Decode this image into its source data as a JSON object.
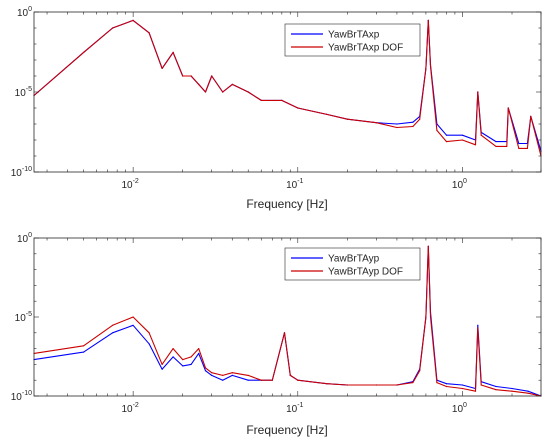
{
  "chart_data": [
    {
      "type": "line",
      "title": "",
      "xlabel": "Frequency [Hz]",
      "ylabel": "",
      "xscale": "log",
      "yscale": "log",
      "xlim": [
        0.0025,
        3
      ],
      "ylim": [
        1e-10,
        1
      ],
      "xticks": [
        {
          "value": 0.01,
          "base": "10",
          "exp": "-2"
        },
        {
          "value": 0.1,
          "base": "10",
          "exp": "-1"
        },
        {
          "value": 1,
          "base": "10",
          "exp": "0"
        }
      ],
      "yticks": [
        {
          "value": 1,
          "base": "10",
          "exp": "0"
        },
        {
          "value": 1e-05,
          "base": "10",
          "exp": "-5"
        },
        {
          "value": 1e-10,
          "base": "10",
          "exp": "-10"
        }
      ],
      "grid": false,
      "legend_position": "top-right",
      "x": [
        0.0025,
        0.005,
        0.0075,
        0.01,
        0.0125,
        0.015,
        0.0175,
        0.02,
        0.0225,
        0.025,
        0.0275,
        0.03,
        0.035,
        0.04,
        0.05,
        0.06,
        0.08,
        0.1,
        0.15,
        0.2,
        0.3,
        0.4,
        0.5,
        0.55,
        0.6,
        0.62,
        0.64,
        0.7,
        0.8,
        1.0,
        1.2,
        1.24,
        1.3,
        1.6,
        1.86,
        1.9,
        2.2,
        2.48,
        2.6,
        3.0
      ],
      "series": [
        {
          "name": "YawBrTAxp",
          "color": "#0000ff",
          "values": [
            6e-06,
            0.003,
            0.1,
            0.3,
            0.05,
            0.0003,
            0.003,
            0.0001,
            0.0001,
            3e-05,
            1e-05,
            0.0001,
            1e-05,
            3e-05,
            1e-05,
            3e-06,
            3e-06,
            1e-06,
            4e-07,
            2e-07,
            1.2e-07,
            1e-07,
            1.3e-07,
            3e-07,
            0.0003,
            0.3,
            0.0005,
            1e-07,
            2e-08,
            2e-08,
            1e-08,
            1e-05,
            3e-08,
            8e-09,
            8e-09,
            1e-06,
            6e-09,
            6e-09,
            3e-07,
            2e-09
          ]
        },
        {
          "name": "YawBrTAxp DOF",
          "color": "#cc0000",
          "values": [
            6e-06,
            0.003,
            0.1,
            0.3,
            0.05,
            0.0003,
            0.003,
            0.0001,
            0.0001,
            3e-05,
            1e-05,
            0.0001,
            1e-05,
            3e-05,
            1e-05,
            3e-06,
            3e-06,
            1e-06,
            4e-07,
            2e-07,
            1.2e-07,
            6e-08,
            7e-08,
            2e-07,
            0.0003,
            0.3,
            0.0004,
            4e-08,
            8e-09,
            1e-08,
            5e-09,
            1e-05,
            2e-08,
            4e-09,
            4e-09,
            1e-06,
            3e-09,
            3e-09,
            3e-07,
            1e-09
          ]
        }
      ]
    },
    {
      "type": "line",
      "title": "",
      "xlabel": "Frequency [Hz]",
      "ylabel": "",
      "xscale": "log",
      "yscale": "log",
      "xlim": [
        0.0025,
        3
      ],
      "ylim": [
        1e-10,
        1
      ],
      "xticks": [
        {
          "value": 0.01,
          "base": "10",
          "exp": "-2"
        },
        {
          "value": 0.1,
          "base": "10",
          "exp": "-1"
        },
        {
          "value": 1,
          "base": "10",
          "exp": "0"
        }
      ],
      "yticks": [
        {
          "value": 1,
          "base": "10",
          "exp": "0"
        },
        {
          "value": 1e-05,
          "base": "10",
          "exp": "-5"
        },
        {
          "value": 1e-10,
          "base": "10",
          "exp": "-10"
        }
      ],
      "grid": false,
      "legend_position": "top-right",
      "x": [
        0.0025,
        0.005,
        0.0075,
        0.01,
        0.0125,
        0.015,
        0.0175,
        0.02,
        0.0225,
        0.025,
        0.0275,
        0.03,
        0.035,
        0.04,
        0.05,
        0.06,
        0.07,
        0.083,
        0.09,
        0.1,
        0.15,
        0.2,
        0.3,
        0.4,
        0.5,
        0.55,
        0.6,
        0.62,
        0.64,
        0.7,
        0.8,
        1.0,
        1.2,
        1.24,
        1.3,
        1.6,
        2.0,
        2.5,
        3.0
      ],
      "series": [
        {
          "name": "YawBrTAyp",
          "color": "#0000ff",
          "values": [
            2e-08,
            6e-08,
            1e-06,
            3e-06,
            2e-07,
            5e-09,
            3e-08,
            8e-09,
            1e-08,
            5e-08,
            4e-09,
            2e-09,
            1e-09,
            2e-09,
            1e-09,
            1e-09,
            1e-09,
            1e-06,
            2e-09,
            1e-09,
            6e-10,
            5e-10,
            5e-10,
            5e-10,
            8e-10,
            5e-09,
            1e-05,
            0.3,
            2e-05,
            1e-09,
            6e-10,
            5e-10,
            3e-10,
            3e-06,
            8e-10,
            4e-10,
            3e-10,
            2e-10,
            1e-10
          ]
        },
        {
          "name": "YawBrTAyp DOF",
          "color": "#cc0000",
          "values": [
            5e-08,
            1.5e-07,
            3e-06,
            1e-05,
            1e-06,
            1e-08,
            1e-07,
            2e-08,
            3e-08,
            1e-07,
            6e-09,
            3e-09,
            2e-09,
            3e-09,
            2e-09,
            1e-09,
            1e-09,
            1e-06,
            2e-09,
            1e-09,
            6e-10,
            5e-10,
            5e-10,
            5e-10,
            7e-10,
            4e-09,
            1e-05,
            0.3,
            1e-05,
            7e-10,
            4e-10,
            3e-10,
            2e-10,
            2e-06,
            5e-10,
            2.5e-10,
            2e-10,
            1.5e-10,
            1e-10
          ]
        }
      ]
    }
  ]
}
